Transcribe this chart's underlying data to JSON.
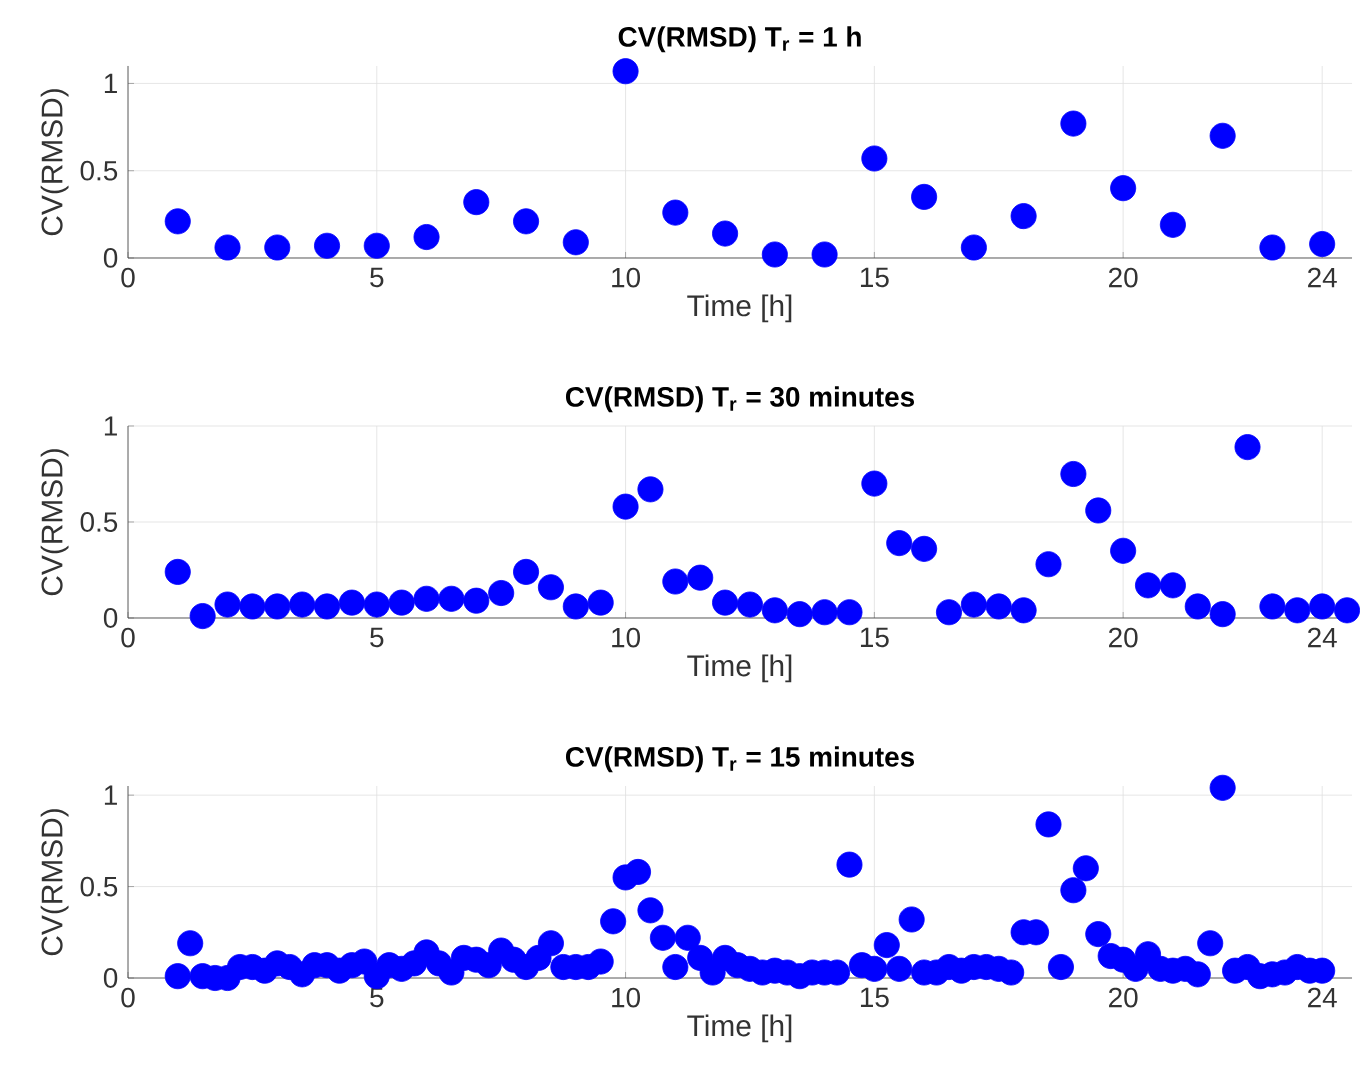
{
  "chart_data": [
    {
      "type": "scatter",
      "title": "CV(RMSD) T$_{r}$ = 1 h",
      "xlabel": "Time [h]",
      "ylabel": "CV(RMSD)",
      "color": "#0000ff",
      "marker": "circle",
      "grid": true,
      "xlim": [
        0,
        24.6
      ],
      "ylim": [
        0,
        1.1
      ],
      "xticks": [
        0,
        5,
        10,
        15,
        20,
        24
      ],
      "yticks": [
        0,
        0.5,
        1
      ],
      "x": [
        1,
        2,
        3,
        4,
        5,
        6,
        7,
        8,
        9,
        10,
        11,
        12,
        13,
        14,
        15,
        16,
        17,
        18,
        19,
        20,
        21,
        22,
        23,
        24
      ],
      "values": [
        0.21,
        0.06,
        0.06,
        0.07,
        0.07,
        0.12,
        0.32,
        0.21,
        0.09,
        1.07,
        0.26,
        0.14,
        0.02,
        0.02,
        0.57,
        0.35,
        0.06,
        0.24,
        0.77,
        0.4,
        0.19,
        0.7,
        0.06,
        0.08
      ]
    },
    {
      "type": "scatter",
      "title": "CV(RMSD) T$_{r}$ = 30 minutes",
      "xlabel": "Time [h]",
      "ylabel": "CV(RMSD)",
      "color": "#0000ff",
      "marker": "circle",
      "grid": true,
      "xlim": [
        0,
        24.6
      ],
      "ylim": [
        0,
        1.0
      ],
      "xticks": [
        0,
        5,
        10,
        15,
        20,
        24
      ],
      "yticks": [
        0,
        0.5,
        1
      ],
      "x": [
        1,
        1.5,
        2,
        2.5,
        3,
        3.5,
        4,
        4.5,
        5,
        5.5,
        6,
        6.5,
        7,
        7.5,
        8,
        8.5,
        9,
        9.5,
        10,
        10.5,
        11,
        11.5,
        12,
        12.5,
        13,
        13.5,
        14,
        14.5,
        15,
        15.5,
        16,
        16.5,
        17,
        17.5,
        18,
        18.5,
        19,
        19.5,
        20,
        20.5,
        21,
        21.5,
        22,
        22.5,
        23,
        23.5,
        24,
        24.5
      ],
      "values": [
        0.24,
        0.01,
        0.07,
        0.06,
        0.06,
        0.07,
        0.06,
        0.08,
        0.07,
        0.08,
        0.1,
        0.1,
        0.09,
        0.13,
        0.24,
        0.16,
        0.06,
        0.08,
        0.58,
        0.67,
        0.19,
        0.21,
        0.08,
        0.07,
        0.04,
        0.02,
        0.03,
        0.03,
        0.7,
        0.39,
        0.36,
        0.03,
        0.07,
        0.06,
        0.04,
        0.28,
        0.75,
        0.56,
        0.35,
        0.17,
        0.17,
        0.06,
        0.02,
        0.89,
        0.06,
        0.04,
        0.06,
        0.04
      ]
    },
    {
      "type": "scatter",
      "title": "CV(RMSD) T$_{r}$ = 15 minutes",
      "xlabel": "Time [h]",
      "ylabel": "CV(RMSD)",
      "color": "#0000ff",
      "marker": "circle",
      "grid": true,
      "xlim": [
        0,
        24.6
      ],
      "ylim": [
        0,
        1.05
      ],
      "xticks": [
        0,
        5,
        10,
        15,
        20,
        24
      ],
      "yticks": [
        0,
        0.5,
        1
      ],
      "x": [
        1,
        1.25,
        1.5,
        1.75,
        2,
        2.25,
        2.5,
        2.75,
        3,
        3.25,
        3.5,
        3.75,
        4,
        4.25,
        4.5,
        4.75,
        5,
        5.25,
        5.5,
        5.75,
        6,
        6.25,
        6.5,
        6.75,
        7,
        7.25,
        7.5,
        7.75,
        8,
        8.25,
        8.5,
        8.75,
        9,
        9.25,
        9.5,
        9.75,
        10,
        10.25,
        10.5,
        10.75,
        11,
        11.25,
        11.5,
        11.75,
        12,
        12.25,
        12.5,
        12.75,
        13,
        13.25,
        13.5,
        13.75,
        14,
        14.25,
        14.5,
        14.75,
        15,
        15.25,
        15.5,
        15.75,
        16,
        16.25,
        16.5,
        16.75,
        17,
        17.25,
        17.5,
        17.75,
        18,
        18.25,
        18.5,
        18.75,
        19,
        19.25,
        19.5,
        19.75,
        20,
        20.25,
        20.5,
        20.75,
        21,
        21.25,
        21.5,
        21.75,
        22,
        22.25,
        22.5,
        22.75,
        23,
        23.25,
        23.5,
        23.75,
        24
      ],
      "values": [
        0.01,
        0.19,
        0.01,
        0,
        0,
        0.06,
        0.06,
        0.04,
        0.08,
        0.06,
        0.02,
        0.07,
        0.07,
        0.04,
        0.07,
        0.09,
        0.01,
        0.07,
        0.05,
        0.08,
        0.14,
        0.08,
        0.03,
        0.11,
        0.1,
        0.07,
        0.15,
        0.1,
        0.06,
        0.11,
        0.19,
        0.06,
        0.06,
        0.06,
        0.09,
        0.31,
        0.55,
        0.58,
        0.37,
        0.22,
        0.06,
        0.22,
        0.11,
        0.03,
        0.11,
        0.07,
        0.05,
        0.03,
        0.04,
        0.03,
        0.01,
        0.03,
        0.03,
        0.03,
        0.62,
        0.07,
        0.05,
        0.18,
        0.05,
        0.32,
        0.03,
        0.03,
        0.06,
        0.04,
        0.06,
        0.06,
        0.05,
        0.03,
        0.25,
        0.25,
        0.84,
        0.06,
        0.48,
        0.6,
        0.24,
        0.12,
        0.1,
        0.05,
        0.13,
        0.05,
        0.04,
        0.05,
        0.02,
        0.19,
        1.04,
        0.04,
        0.06,
        0.01,
        0.02,
        0.03,
        0.06,
        0.04,
        0.04
      ]
    }
  ]
}
